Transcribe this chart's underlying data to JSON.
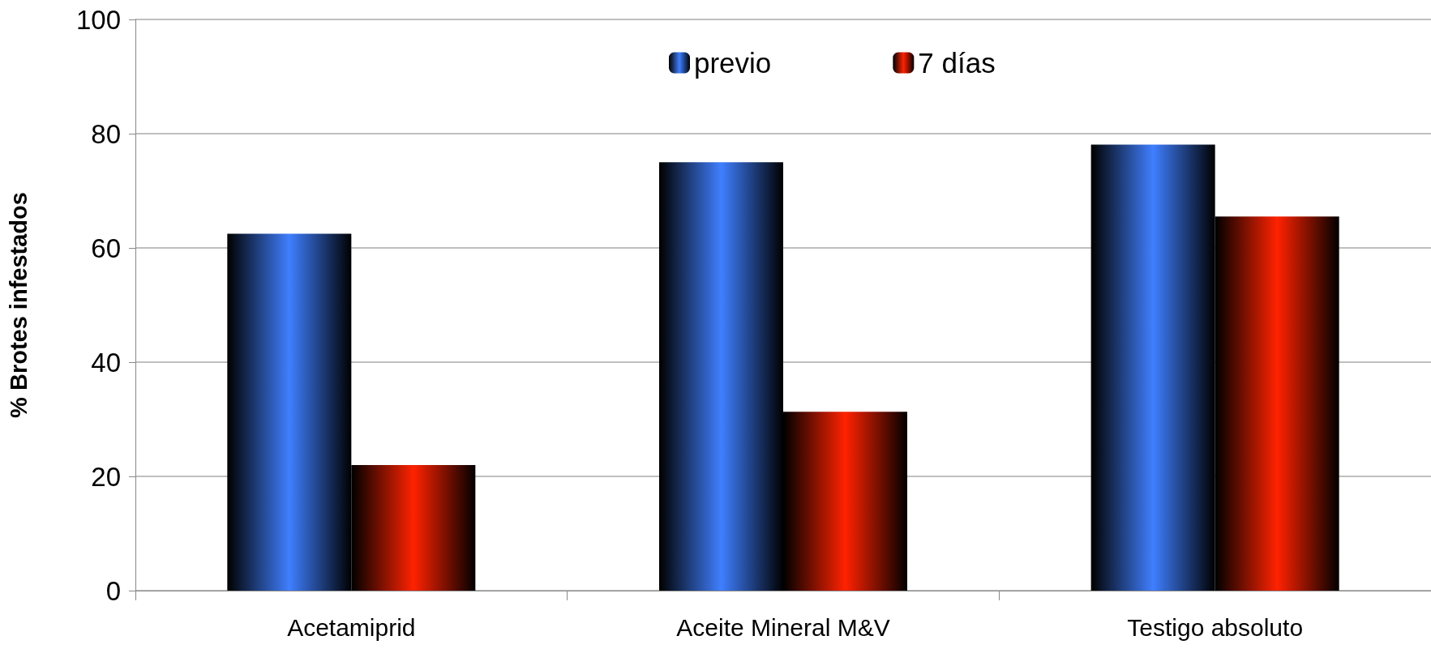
{
  "chart_data": {
    "type": "bar",
    "ylabel": "% Brotes infestados",
    "categories": [
      "Acetamiprid",
      "Aceite Mineral M&V",
      "Testigo absoluto"
    ],
    "series": [
      {
        "name": "previo",
        "color": "#3f7fff",
        "values": [
          62.5,
          75,
          78.1
        ]
      },
      {
        "name": "7 días",
        "color": "#ff2200",
        "values": [
          22,
          31.3,
          65.5
        ]
      }
    ],
    "ylim": [
      0,
      100
    ],
    "yticks": [
      0,
      20,
      40,
      60,
      80,
      100
    ],
    "grid": "y",
    "legend": "top"
  }
}
